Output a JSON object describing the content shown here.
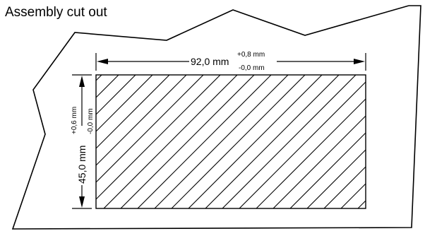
{
  "title": "Assembly cut out",
  "width_dimension": {
    "value": "92,0 mm",
    "tolerance_plus": "+0,8 mm",
    "tolerance_minus": "-0,0 mm"
  },
  "height_dimension": {
    "value": "45,0 mm",
    "tolerance_plus": "+0,6 mm",
    "tolerance_minus": "-0,0 mm"
  },
  "colors": {
    "line": "#000000",
    "background": "#ffffff"
  }
}
